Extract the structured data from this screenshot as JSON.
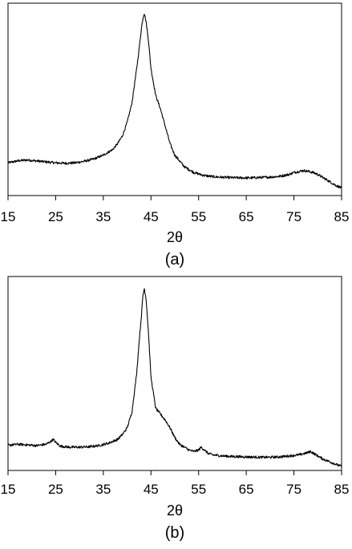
{
  "chart_data": [
    {
      "type": "line",
      "panel_label": "(a)",
      "xlabel": "2θ",
      "ylabel": "",
      "xlim": [
        15,
        85
      ],
      "ylim": [
        0,
        100
      ],
      "xticks": [
        15,
        25,
        35,
        45,
        55,
        65,
        75,
        85
      ],
      "xtick_labels": [
        "15",
        "25",
        "35",
        "45",
        "55",
        "65",
        "75",
        "85"
      ],
      "grid": false,
      "series": [
        {
          "color": "#000000",
          "x": [
            15,
            17,
            19,
            21,
            23,
            25,
            27,
            29,
            31,
            33,
            35,
            37,
            38,
            39,
            40,
            41,
            42,
            42.5,
            43,
            43.3,
            43.6,
            44,
            44.5,
            45,
            46,
            47,
            48,
            49,
            50,
            52,
            54,
            56,
            58,
            60,
            62,
            64,
            66,
            68,
            70,
            72,
            74,
            75,
            76,
            77,
            78,
            79,
            80,
            81,
            82,
            83,
            84,
            85
          ],
          "y": [
            17,
            18,
            18.5,
            18,
            17.5,
            17,
            16.8,
            17,
            17.8,
            19,
            21,
            24,
            27,
            31,
            38,
            48,
            66,
            76,
            87,
            92,
            95,
            90,
            80,
            66,
            52,
            45,
            36,
            27,
            21,
            15,
            12,
            10.5,
            9.8,
            9.5,
            9.3,
            9.2,
            9.2,
            9.4,
            9.6,
            10,
            11,
            12,
            12.5,
            13,
            12.6,
            12,
            11,
            9.5,
            8,
            6.5,
            5,
            4
          ]
        }
      ]
    },
    {
      "type": "line",
      "panel_label": "(b)",
      "xlabel": "2θ",
      "ylabel": "",
      "xlim": [
        15,
        85
      ],
      "ylim": [
        0,
        100
      ],
      "xticks": [
        15,
        25,
        35,
        45,
        55,
        65,
        75,
        85
      ],
      "xtick_labels": [
        "15",
        "25",
        "35",
        "45",
        "55",
        "65",
        "75",
        "85"
      ],
      "grid": false,
      "series": [
        {
          "color": "#000000",
          "x": [
            15,
            17,
            19,
            21,
            23,
            24,
            24.5,
            25,
            26,
            28,
            30,
            32,
            34,
            36,
            38,
            39,
            40,
            41,
            42,
            42.5,
            43,
            43.3,
            43.6,
            44,
            44.5,
            45,
            46,
            47,
            48,
            49,
            50,
            51,
            52,
            53,
            54,
            55,
            55.5,
            56,
            57,
            58,
            60,
            62,
            65,
            68,
            70,
            72,
            74,
            76,
            77,
            78,
            78.5,
            79,
            80,
            81,
            82,
            83,
            84,
            85
          ],
          "y": [
            13,
            13.5,
            13.2,
            12.8,
            13.5,
            15,
            16,
            14.5,
            12.5,
            12,
            12,
            12.2,
            12.8,
            14,
            16,
            18.5,
            22,
            30,
            50,
            66,
            80,
            90,
            94,
            88,
            70,
            48,
            32,
            29,
            26,
            22,
            17,
            13.5,
            12,
            10.5,
            9.8,
            10.5,
            12,
            11,
            8.8,
            8,
            7.5,
            7.2,
            7,
            6.8,
            6.8,
            7,
            7.5,
            8,
            8.6,
            9.3,
            9.8,
            9,
            7.5,
            6,
            5,
            4,
            3,
            2
          ]
        }
      ]
    }
  ]
}
